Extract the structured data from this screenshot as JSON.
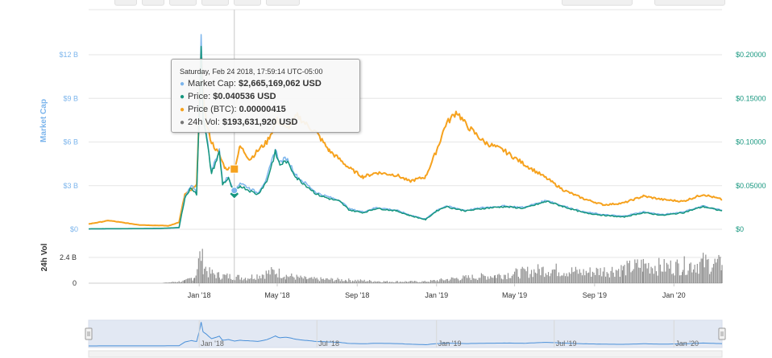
{
  "tooltip": {
    "date": "Saturday, Feb 24 2018, 17:59:14 UTC-05:00",
    "rows": [
      {
        "label": "Market Cap:",
        "value": "$2,665,169,062 USD",
        "color": "#7cb5ec"
      },
      {
        "label": "Price:",
        "value": "$0.040536 USD",
        "color": "#15967e"
      },
      {
        "label": "Price (BTC):",
        "value": "0.00000415",
        "color": "#f6a21e"
      },
      {
        "label": "24h Vol:",
        "value": "$193,631,920 USD",
        "color": "#777777"
      }
    ]
  },
  "colors": {
    "market_cap": "#7cb5ec",
    "price": "#15967e",
    "price_btc": "#f6a21e",
    "volume": "#777777",
    "navigator": "#4a90d9",
    "navigator_fill": "#ccd6eb"
  },
  "chart_data": {
    "type": "line",
    "x_tick_labels": [
      "Jan '18",
      "May '18",
      "Sep '18",
      "Jan '19",
      "May '19",
      "Sep '19",
      "Jan '20"
    ],
    "left_axis": {
      "title": "Market Cap",
      "tick_labels": [
        "$0",
        "$3 B",
        "$6 B",
        "$9 B",
        "$12 B"
      ],
      "ylim": [
        0,
        12000000000
      ]
    },
    "right_axis": {
      "tick_labels": [
        "$0",
        "$0.05000",
        "$0.10000",
        "$0.15000",
        "$0.20000"
      ],
      "ylim": [
        0,
        0.2
      ]
    },
    "volume_axis": {
      "title": "24h Vol",
      "tick_labels": [
        "0",
        "2.4 B"
      ],
      "ylim": [
        0,
        2400000000
      ]
    },
    "navigator_labels": [
      "Jan '18",
      "Jul '18",
      "Jan '19",
      "Jul '19",
      "Jan '20"
    ],
    "x_range": [
      "2017-07-15",
      "2020-03-15"
    ],
    "series": [
      {
        "name": "Market Cap",
        "axis": "left",
        "points": [
          [
            "2017-07-15",
            20000000.0
          ],
          [
            "2017-09-01",
            30000000.0
          ],
          [
            "2017-11-01",
            50000000.0
          ],
          [
            "2017-12-01",
            100000000.0
          ],
          [
            "2017-12-10",
            2200000000.0
          ],
          [
            "2017-12-20",
            3000000000.0
          ],
          [
            "2017-12-28",
            2500000000.0
          ],
          [
            "2018-01-02",
            9500000000.0
          ],
          [
            "2018-01-04",
            13200000000.0
          ],
          [
            "2018-01-07",
            8000000000.0
          ],
          [
            "2018-01-12",
            6500000000.0
          ],
          [
            "2018-01-20",
            4000000000.0
          ],
          [
            "2018-02-01",
            5500000000.0
          ],
          [
            "2018-02-06",
            3200000000.0
          ],
          [
            "2018-02-15",
            3600000000.0
          ],
          [
            "2018-02-24",
            2670000000.0
          ],
          [
            "2018-03-05",
            3200000000.0
          ],
          [
            "2018-03-20",
            2800000000.0
          ],
          [
            "2018-04-01",
            2500000000.0
          ],
          [
            "2018-04-15",
            3500000000.0
          ],
          [
            "2018-04-28",
            5500000000.0
          ],
          [
            "2018-05-05",
            4600000000.0
          ],
          [
            "2018-05-15",
            4900000000.0
          ],
          [
            "2018-06-01",
            3600000000.0
          ],
          [
            "2018-06-15",
            3100000000.0
          ],
          [
            "2018-07-01",
            2500000000.0
          ],
          [
            "2018-07-20",
            2200000000.0
          ],
          [
            "2018-08-05",
            2000000000.0
          ],
          [
            "2018-08-20",
            1400000000.0
          ],
          [
            "2018-09-10",
            1200000000.0
          ],
          [
            "2018-10-01",
            1500000000.0
          ],
          [
            "2018-11-01",
            1300000000.0
          ],
          [
            "2018-11-20",
            1000000000.0
          ],
          [
            "2018-12-15",
            700000000.0
          ],
          [
            "2019-01-01",
            1300000000.0
          ],
          [
            "2019-01-15",
            1600000000.0
          ],
          [
            "2019-02-15",
            1300000000.0
          ],
          [
            "2019-03-15",
            1500000000.0
          ],
          [
            "2019-04-15",
            1600000000.0
          ],
          [
            "2019-05-15",
            1500000000.0
          ],
          [
            "2019-06-20",
            2000000000.0
          ],
          [
            "2019-07-15",
            1600000000.0
          ],
          [
            "2019-08-15",
            1200000000.0
          ],
          [
            "2019-09-15",
            1000000000.0
          ],
          [
            "2019-10-15",
            900000000.0
          ],
          [
            "2019-11-15",
            1200000000.0
          ],
          [
            "2019-12-15",
            1000000000.0
          ],
          [
            "2020-01-15",
            1200000000.0
          ],
          [
            "2020-02-15",
            1600000000.0
          ],
          [
            "2020-03-15",
            1300000000.0
          ]
        ]
      },
      {
        "name": "Price",
        "axis": "right",
        "points": [
          [
            "2017-07-15",
            0.0005
          ],
          [
            "2017-09-01",
            0.0007
          ],
          [
            "2017-11-01",
            0.001
          ],
          [
            "2017-12-01",
            0.002
          ],
          [
            "2017-12-10",
            0.036
          ],
          [
            "2017-12-20",
            0.048
          ],
          [
            "2017-12-28",
            0.04
          ],
          [
            "2018-01-02",
            0.15
          ],
          [
            "2018-01-04",
            0.21
          ],
          [
            "2018-01-07",
            0.13
          ],
          [
            "2018-01-12",
            0.105
          ],
          [
            "2018-01-20",
            0.064
          ],
          [
            "2018-02-01",
            0.088
          ],
          [
            "2018-02-06",
            0.052
          ],
          [
            "2018-02-15",
            0.058
          ],
          [
            "2018-02-24",
            0.0405
          ],
          [
            "2018-03-05",
            0.05
          ],
          [
            "2018-03-20",
            0.044
          ],
          [
            "2018-04-01",
            0.04
          ],
          [
            "2018-04-15",
            0.055
          ],
          [
            "2018-04-28",
            0.088
          ],
          [
            "2018-05-05",
            0.074
          ],
          [
            "2018-05-15",
            0.078
          ],
          [
            "2018-06-01",
            0.058
          ],
          [
            "2018-06-15",
            0.05
          ],
          [
            "2018-07-01",
            0.04
          ],
          [
            "2018-07-20",
            0.035
          ],
          [
            "2018-08-05",
            0.032
          ],
          [
            "2018-08-20",
            0.022
          ],
          [
            "2018-09-10",
            0.019
          ],
          [
            "2018-10-01",
            0.024
          ],
          [
            "2018-11-01",
            0.021
          ],
          [
            "2018-11-20",
            0.016
          ],
          [
            "2018-12-15",
            0.011
          ],
          [
            "2019-01-01",
            0.021
          ],
          [
            "2019-01-15",
            0.026
          ],
          [
            "2019-02-15",
            0.021
          ],
          [
            "2019-03-15",
            0.024
          ],
          [
            "2019-04-15",
            0.026
          ],
          [
            "2019-05-15",
            0.024
          ],
          [
            "2019-06-20",
            0.032
          ],
          [
            "2019-07-15",
            0.026
          ],
          [
            "2019-08-15",
            0.019
          ],
          [
            "2019-09-15",
            0.016
          ],
          [
            "2019-10-15",
            0.014
          ],
          [
            "2019-11-15",
            0.019
          ],
          [
            "2019-12-15",
            0.016
          ],
          [
            "2020-01-15",
            0.019
          ],
          [
            "2020-02-15",
            0.026
          ],
          [
            "2020-03-15",
            0.021
          ]
        ]
      },
      {
        "name": "Price (BTC)",
        "axis": "right_scaled",
        "points": [
          [
            "2017-07-15",
            0.006
          ],
          [
            "2017-08-15",
            0.01
          ],
          [
            "2017-10-01",
            0.005
          ],
          [
            "2017-11-15",
            0.004
          ],
          [
            "2017-12-01",
            0.008
          ],
          [
            "2017-12-10",
            0.04
          ],
          [
            "2017-12-20",
            0.045
          ],
          [
            "2017-12-28",
            0.05
          ],
          [
            "2018-01-02",
            0.16
          ],
          [
            "2018-01-04",
            0.2
          ],
          [
            "2018-01-07",
            0.16
          ],
          [
            "2018-01-12",
            0.12
          ],
          [
            "2018-01-20",
            0.1
          ],
          [
            "2018-02-01",
            0.085
          ],
          [
            "2018-02-10",
            0.07
          ],
          [
            "2018-02-24",
            0.069
          ],
          [
            "2018-03-05",
            0.095
          ],
          [
            "2018-03-20",
            0.08
          ],
          [
            "2018-04-01",
            0.09
          ],
          [
            "2018-04-15",
            0.1
          ],
          [
            "2018-05-01",
            0.125
          ],
          [
            "2018-05-15",
            0.115
          ],
          [
            "2018-06-01",
            0.13
          ],
          [
            "2018-06-15",
            0.12
          ],
          [
            "2018-07-01",
            0.11
          ],
          [
            "2018-07-20",
            0.09
          ],
          [
            "2018-08-05",
            0.08
          ],
          [
            "2018-08-20",
            0.07
          ],
          [
            "2018-09-10",
            0.06
          ],
          [
            "2018-10-01",
            0.065
          ],
          [
            "2018-11-01",
            0.062
          ],
          [
            "2018-11-20",
            0.055
          ],
          [
            "2018-12-15",
            0.06
          ],
          [
            "2019-01-01",
            0.09
          ],
          [
            "2019-01-15",
            0.12
          ],
          [
            "2019-02-01",
            0.135
          ],
          [
            "2019-02-15",
            0.12
          ],
          [
            "2019-03-15",
            0.1
          ],
          [
            "2019-04-15",
            0.09
          ],
          [
            "2019-05-15",
            0.075
          ],
          [
            "2019-06-20",
            0.058
          ],
          [
            "2019-07-15",
            0.045
          ],
          [
            "2019-08-15",
            0.035
          ],
          [
            "2019-09-15",
            0.028
          ],
          [
            "2019-10-15",
            0.03
          ],
          [
            "2019-11-15",
            0.038
          ],
          [
            "2019-12-15",
            0.034
          ],
          [
            "2020-01-15",
            0.032
          ],
          [
            "2020-02-15",
            0.04
          ],
          [
            "2020-03-15",
            0.034
          ]
        ]
      },
      {
        "name": "24h Vol",
        "axis": "volume",
        "points": [
          [
            "2017-07-15",
            0.0
          ],
          [
            "2017-11-01",
            0.0
          ],
          [
            "2017-12-10",
            200000000.0
          ],
          [
            "2017-12-25",
            600000000.0
          ],
          [
            "2018-01-04",
            2800000000.0
          ],
          [
            "2018-01-07",
            1800000000.0
          ],
          [
            "2018-01-15",
            1000000000.0
          ],
          [
            "2018-02-01",
            700000000.0
          ],
          [
            "2018-03-15",
            500000000.0
          ],
          [
            "2018-04-28",
            1100000000.0
          ],
          [
            "2018-05-15",
            700000000.0
          ],
          [
            "2018-06-15",
            400000000.0
          ],
          [
            "2018-08-15",
            300000000.0
          ],
          [
            "2018-10-15",
            150000000.0
          ],
          [
            "2018-12-15",
            150000000.0
          ],
          [
            "2019-02-01",
            450000000.0
          ],
          [
            "2019-04-01",
            700000000.0
          ],
          [
            "2019-05-15",
            1000000000.0
          ],
          [
            "2019-06-20",
            1300000000.0
          ],
          [
            "2019-08-15",
            1000000000.0
          ],
          [
            "2019-10-15",
            1300000000.0
          ],
          [
            "2019-11-15",
            1700000000.0
          ],
          [
            "2019-12-15",
            1500000000.0
          ],
          [
            "2020-01-15",
            1600000000.0
          ],
          [
            "2020-02-15",
            1900000000.0
          ],
          [
            "2020-03-15",
            1700000000.0
          ]
        ]
      }
    ],
    "markers": [
      {
        "series": "Price (BTC)",
        "date": "2018-02-24",
        "shape": "square"
      },
      {
        "series": "Price",
        "date": "2018-02-24",
        "shape": "diamond"
      },
      {
        "series": "Market Cap",
        "date": "2018-02-24",
        "shape": "circle"
      }
    ]
  }
}
